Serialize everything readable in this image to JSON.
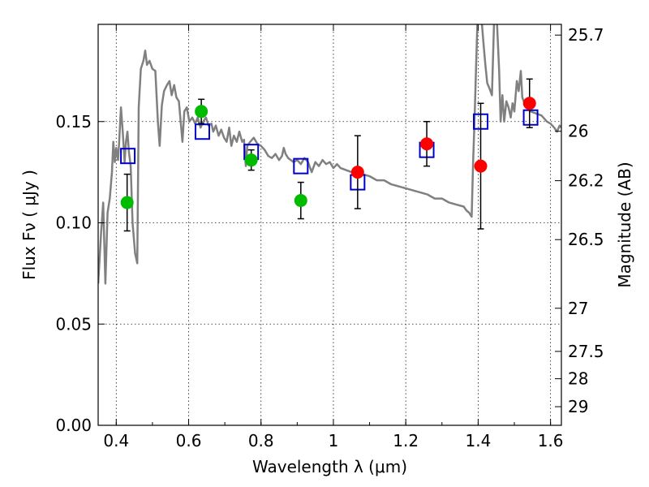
{
  "chart_data": {
    "type": "scatter",
    "xlabel": "Wavelength  λ (μm)",
    "ylabel": "Flux  Fν  ( μJy )",
    "ylabel_right": "Magnitude (AB)",
    "xlim": [
      0.35,
      1.63
    ],
    "ylim": [
      0.0,
      0.198
    ],
    "grid": true,
    "x_ticks": [
      0.4,
      0.6,
      0.8,
      1.0,
      1.2,
      1.4,
      1.6
    ],
    "x_tick_labels": [
      "0.4",
      "0.6",
      "0.8",
      "1",
      "1.2",
      "1.4",
      "1.6"
    ],
    "y_ticks": [
      0.0,
      0.05,
      0.1,
      0.15
    ],
    "y_tick_labels": [
      "0.00",
      "0.05",
      "0.10",
      "0.15"
    ],
    "right_ticks": [
      {
        "label": "25.7",
        "flux": 0.1927
      },
      {
        "label": "26",
        "flux": 0.1452
      },
      {
        "label": "26.2",
        "flux": 0.1208
      },
      {
        "label": "26.5",
        "flux": 0.0917
      },
      {
        "label": "27",
        "flux": 0.0578
      },
      {
        "label": "27.5",
        "flux": 0.0365
      },
      {
        "label": "28",
        "flux": 0.023
      },
      {
        "label": "29",
        "flux": 0.0092
      }
    ],
    "series": [
      {
        "marker": "circle",
        "color": "#00bb00",
        "points": [
          {
            "x": 0.43,
            "y": 0.11,
            "err": 0.014
          },
          {
            "x": 0.635,
            "y": 0.155,
            "err": 0.006
          },
          {
            "x": 0.773,
            "y": 0.131,
            "err": 0.005
          },
          {
            "x": 0.91,
            "y": 0.111,
            "err": 0.009
          }
        ]
      },
      {
        "marker": "circle",
        "color": "#ff0000",
        "points": [
          {
            "x": 1.067,
            "y": 0.125,
            "err": 0.018
          },
          {
            "x": 1.258,
            "y": 0.139,
            "err": 0.011
          },
          {
            "x": 1.407,
            "y": 0.128,
            "err": 0.031
          },
          {
            "x": 1.542,
            "y": 0.159,
            "err": 0.012
          }
        ]
      },
      {
        "marker": "open-square",
        "color": "#0000cc",
        "points": [
          {
            "x": 0.432,
            "y": 0.133
          },
          {
            "x": 0.638,
            "y": 0.145
          },
          {
            "x": 0.773,
            "y": 0.135
          },
          {
            "x": 0.91,
            "y": 0.128
          },
          {
            "x": 1.067,
            "y": 0.12
          },
          {
            "x": 1.258,
            "y": 0.136
          },
          {
            "x": 1.407,
            "y": 0.15
          },
          {
            "x": 1.545,
            "y": 0.152
          }
        ]
      },
      {
        "type": "line",
        "color": "#808080",
        "points": [
          [
            0.35,
            0.07
          ],
          [
            0.358,
            0.095
          ],
          [
            0.364,
            0.11
          ],
          [
            0.37,
            0.07
          ],
          [
            0.376,
            0.105
          ],
          [
            0.382,
            0.112
          ],
          [
            0.388,
            0.125
          ],
          [
            0.392,
            0.14
          ],
          [
            0.396,
            0.13
          ],
          [
            0.4,
            0.137
          ],
          [
            0.405,
            0.131
          ],
          [
            0.408,
            0.14
          ],
          [
            0.413,
            0.157
          ],
          [
            0.418,
            0.145
          ],
          [
            0.423,
            0.13
          ],
          [
            0.427,
            0.14
          ],
          [
            0.431,
            0.145
          ],
          [
            0.435,
            0.135
          ],
          [
            0.44,
            0.128
          ],
          [
            0.445,
            0.1
          ],
          [
            0.452,
            0.085
          ],
          [
            0.458,
            0.08
          ],
          [
            0.462,
            0.157
          ],
          [
            0.468,
            0.176
          ],
          [
            0.475,
            0.18
          ],
          [
            0.48,
            0.185
          ],
          [
            0.485,
            0.178
          ],
          [
            0.492,
            0.18
          ],
          [
            0.5,
            0.176
          ],
          [
            0.508,
            0.175
          ],
          [
            0.515,
            0.15
          ],
          [
            0.52,
            0.138
          ],
          [
            0.526,
            0.158
          ],
          [
            0.532,
            0.165
          ],
          [
            0.54,
            0.168
          ],
          [
            0.547,
            0.17
          ],
          [
            0.553,
            0.163
          ],
          [
            0.56,
            0.168
          ],
          [
            0.566,
            0.162
          ],
          [
            0.573,
            0.16
          ],
          [
            0.578,
            0.15
          ],
          [
            0.583,
            0.14
          ],
          [
            0.588,
            0.155
          ],
          [
            0.595,
            0.157
          ],
          [
            0.602,
            0.15
          ],
          [
            0.61,
            0.152
          ],
          [
            0.618,
            0.149
          ],
          [
            0.625,
            0.152
          ],
          [
            0.633,
            0.147
          ],
          [
            0.64,
            0.15
          ],
          [
            0.648,
            0.152
          ],
          [
            0.655,
            0.148
          ],
          [
            0.663,
            0.149
          ],
          [
            0.668,
            0.145
          ],
          [
            0.675,
            0.148
          ],
          [
            0.683,
            0.143
          ],
          [
            0.69,
            0.146
          ],
          [
            0.698,
            0.142
          ],
          [
            0.705,
            0.14
          ],
          [
            0.712,
            0.147
          ],
          [
            0.718,
            0.138
          ],
          [
            0.725,
            0.143
          ],
          [
            0.733,
            0.14
          ],
          [
            0.74,
            0.145
          ],
          [
            0.748,
            0.14
          ],
          [
            0.753,
            0.141
          ],
          [
            0.758,
            0.128
          ],
          [
            0.762,
            0.138
          ],
          [
            0.77,
            0.14
          ],
          [
            0.78,
            0.142
          ],
          [
            0.79,
            0.139
          ],
          [
            0.8,
            0.138
          ],
          [
            0.81,
            0.136
          ],
          [
            0.82,
            0.133
          ],
          [
            0.83,
            0.132
          ],
          [
            0.84,
            0.134
          ],
          [
            0.85,
            0.131
          ],
          [
            0.858,
            0.133
          ],
          [
            0.863,
            0.137
          ],
          [
            0.868,
            0.134
          ],
          [
            0.875,
            0.132
          ],
          [
            0.89,
            0.13
          ],
          [
            0.9,
            0.131
          ],
          [
            0.91,
            0.129
          ],
          [
            0.92,
            0.132
          ],
          [
            0.93,
            0.13
          ],
          [
            0.94,
            0.125
          ],
          [
            0.95,
            0.13
          ],
          [
            0.96,
            0.128
          ],
          [
            0.97,
            0.131
          ],
          [
            0.98,
            0.129
          ],
          [
            0.99,
            0.13
          ],
          [
            1.0,
            0.127
          ],
          [
            1.01,
            0.129
          ],
          [
            1.02,
            0.127
          ],
          [
            1.035,
            0.126
          ],
          [
            1.05,
            0.125
          ],
          [
            1.065,
            0.124
          ],
          [
            1.08,
            0.124
          ],
          [
            1.1,
            0.123
          ],
          [
            1.12,
            0.121
          ],
          [
            1.14,
            0.121
          ],
          [
            1.16,
            0.119
          ],
          [
            1.18,
            0.118
          ],
          [
            1.2,
            0.117
          ],
          [
            1.22,
            0.116
          ],
          [
            1.24,
            0.115
          ],
          [
            1.26,
            0.114
          ],
          [
            1.28,
            0.112
          ],
          [
            1.3,
            0.112
          ],
          [
            1.32,
            0.11
          ],
          [
            1.34,
            0.109
          ],
          [
            1.36,
            0.108
          ],
          [
            1.368,
            0.106
          ],
          [
            1.375,
            0.105
          ],
          [
            1.382,
            0.103
          ],
          [
            1.386,
            0.13
          ],
          [
            1.39,
            0.15
          ],
          [
            1.394,
            0.175
          ],
          [
            1.398,
            0.199
          ],
          [
            1.405,
            0.199
          ],
          [
            1.41,
            0.199
          ],
          [
            1.415,
            0.188
          ],
          [
            1.42,
            0.178
          ],
          [
            1.425,
            0.169
          ],
          [
            1.432,
            0.166
          ],
          [
            1.438,
            0.163
          ],
          [
            1.444,
            0.199
          ],
          [
            1.452,
            0.199
          ],
          [
            1.458,
            0.175
          ],
          [
            1.462,
            0.15
          ],
          [
            1.467,
            0.163
          ],
          [
            1.472,
            0.15
          ],
          [
            1.478,
            0.16
          ],
          [
            1.484,
            0.157
          ],
          [
            1.49,
            0.152
          ],
          [
            1.495,
            0.159
          ],
          [
            1.5,
            0.155
          ],
          [
            1.507,
            0.17
          ],
          [
            1.512,
            0.165
          ],
          [
            1.518,
            0.175
          ],
          [
            1.522,
            0.162
          ],
          [
            1.53,
            0.158
          ],
          [
            1.545,
            0.155
          ],
          [
            1.56,
            0.154
          ],
          [
            1.575,
            0.153
          ],
          [
            1.59,
            0.15
          ],
          [
            1.6,
            0.149
          ],
          [
            1.61,
            0.147
          ],
          [
            1.618,
            0.145
          ],
          [
            1.625,
            0.148
          ],
          [
            1.63,
            0.147
          ]
        ]
      }
    ]
  }
}
